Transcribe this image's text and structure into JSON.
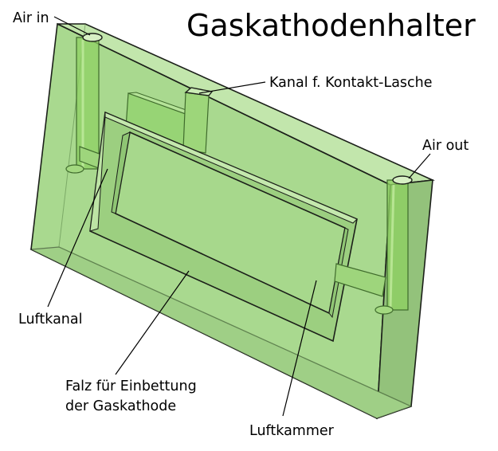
{
  "title": "Gaskathodenhalter",
  "labels": {
    "air_in": "Air in",
    "kanal": "Kanal f. Kontakt-Lasche",
    "air_out": "Air out",
    "luftkanal": "Luftkanal",
    "falz_line1": "Falz für Einbettung",
    "falz_line2": "der Gaskathode",
    "luftkammer": "Luftkammer"
  },
  "colors": {
    "block_front": "#a9d98f",
    "block_top": "#c2e6ac",
    "block_side": "#93c27b",
    "tube": "#8fd063",
    "chamber": "#a7d88c",
    "edge": "#1b1f19"
  }
}
